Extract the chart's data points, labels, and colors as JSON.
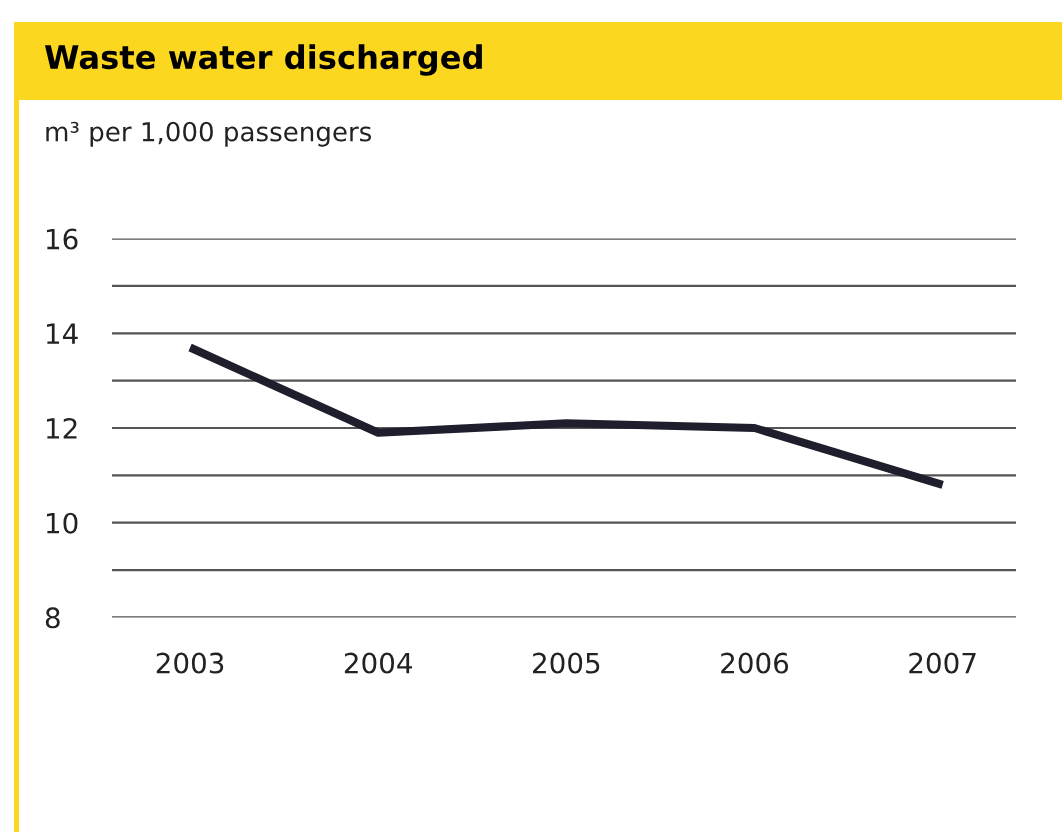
{
  "chart_data": {
    "type": "line",
    "title": "Waste water discharged",
    "subtitle": "m³ per 1,000 passengers",
    "categories": [
      "2003",
      "2004",
      "2005",
      "2006",
      "2007"
    ],
    "series": [
      {
        "color": "#1e1e2d",
        "values": [
          13.7,
          11.9,
          12.1,
          12.0,
          10.8
        ]
      }
    ],
    "ylim": [
      8,
      16
    ],
    "yticks": [
      8,
      {
        "value": 9,
        "label": null
      },
      10,
      {
        "value": 11,
        "label": null
      },
      12,
      {
        "value": 13,
        "label": null
      },
      14,
      {
        "value": 15,
        "label": null
      },
      16
    ],
    "grid": "y",
    "marker": "none",
    "line_style": "solid"
  }
}
